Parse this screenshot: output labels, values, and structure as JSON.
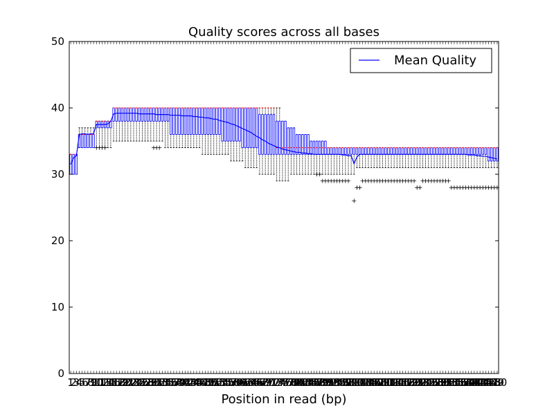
{
  "chart_data": {
    "type": "box",
    "title": "Quality scores across all bases",
    "xlabel": "Position in read (bp)",
    "ylabel": "",
    "ylim": [
      0,
      50
    ],
    "yticks": [
      0,
      10,
      20,
      30,
      40,
      50
    ],
    "grid": false,
    "legend": {
      "position": "top-right",
      "entries": [
        "Mean Quality"
      ]
    },
    "colors": {
      "mean": "#0000ff",
      "median": "#ff0000",
      "box": "#0000ff",
      "whisker": "#000000",
      "outlier": "#000000"
    },
    "positions": [
      1,
      2,
      3,
      4,
      5,
      6,
      7,
      8,
      9,
      10,
      11,
      12,
      13,
      14,
      15,
      16,
      17,
      18,
      19,
      20,
      21,
      22,
      23,
      24,
      25,
      26,
      27,
      28,
      29,
      30,
      31,
      32,
      33,
      34,
      35,
      36,
      37,
      38,
      39,
      40,
      41,
      42,
      43,
      44,
      45,
      46,
      47,
      48,
      49,
      50,
      51,
      52,
      53,
      54,
      55,
      56,
      57,
      58,
      59,
      60,
      61,
      62,
      63,
      64,
      65,
      66,
      67,
      68,
      69,
      70,
      71,
      72,
      73,
      74,
      75,
      76,
      77,
      78,
      79,
      80,
      81,
      82,
      83,
      84,
      85,
      86,
      87,
      88,
      89,
      90,
      91,
      92,
      93,
      94,
      95,
      96,
      97,
      98,
      99,
      100,
      101,
      102,
      103,
      104,
      105,
      106,
      107,
      108,
      109,
      110,
      111,
      112,
      113,
      114,
      115,
      116,
      117,
      118,
      119,
      120,
      121,
      122,
      123,
      124,
      125,
      126,
      127,
      128,
      129,
      130,
      131,
      132,
      133,
      134,
      135,
      136,
      137,
      138,
      139,
      140,
      141,
      142,
      143,
      144,
      145,
      146,
      147,
      148,
      149,
      150
    ],
    "mean_quality": [
      31.5,
      32.5,
      32.8,
      36.0,
      36.1,
      36.1,
      36.0,
      36.1,
      36.1,
      37.5,
      37.5,
      37.5,
      37.5,
      37.6,
      38.0,
      39.1,
      39.2,
      39.2,
      39.2,
      39.2,
      39.2,
      39.2,
      39.2,
      39.2,
      39.1,
      39.1,
      39.1,
      39.1,
      39.1,
      39.1,
      39.0,
      39.0,
      39.0,
      39.0,
      39.0,
      38.9,
      38.9,
      38.9,
      38.9,
      38.8,
      38.8,
      38.8,
      38.8,
      38.7,
      38.7,
      38.6,
      38.6,
      38.5,
      38.5,
      38.4,
      38.3,
      38.3,
      38.1,
      38.0,
      37.9,
      37.8,
      37.6,
      37.5,
      37.3,
      37.1,
      36.9,
      36.7,
      36.5,
      36.3,
      36.0,
      35.7,
      35.5,
      35.2,
      35.0,
      34.7,
      34.5,
      34.3,
      34.1,
      34.0,
      33.8,
      33.7,
      33.6,
      33.5,
      33.4,
      33.3,
      33.3,
      33.2,
      33.2,
      33.1,
      33.1,
      33.0,
      33.0,
      33.0,
      33.0,
      33.0,
      33.0,
      33.0,
      33.0,
      33.0,
      33.0,
      32.9,
      32.9,
      32.8,
      32.8,
      31.6,
      32.6,
      33.0,
      33.0,
      33.0,
      33.0,
      33.0,
      33.0,
      33.0,
      33.0,
      33.0,
      33.0,
      33.0,
      33.0,
      33.0,
      33.0,
      33.0,
      33.0,
      33.0,
      33.0,
      33.0,
      33.0,
      33.0,
      33.0,
      33.0,
      33.0,
      33.0,
      33.0,
      33.0,
      33.0,
      33.0,
      33.0,
      33.0,
      33.0,
      33.0,
      33.0,
      33.0,
      33.0,
      33.0,
      33.0,
      32.9,
      32.9,
      32.9,
      32.8,
      32.8,
      32.7,
      32.7,
      32.6,
      32.5,
      32.4,
      32.3,
      32.2,
      32.1,
      32.0,
      31.8
    ],
    "median": [
      33,
      33,
      33,
      36,
      36,
      36,
      36,
      36,
      36,
      38,
      38,
      38,
      38,
      38,
      38,
      40,
      40,
      40,
      40,
      40,
      40,
      40,
      40,
      40,
      40,
      40,
      40,
      40,
      40,
      40,
      40,
      40,
      40,
      40,
      40,
      40,
      40,
      40,
      40,
      40,
      40,
      40,
      40,
      40,
      40,
      40,
      40,
      40,
      40,
      40,
      40,
      40,
      40,
      40,
      40,
      40,
      40,
      40,
      40,
      40,
      40,
      40,
      40,
      40,
      40,
      40,
      40,
      40,
      40,
      40,
      40,
      40,
      34,
      34,
      34,
      34,
      34,
      34,
      34,
      34,
      34,
      34,
      34,
      34,
      34,
      34,
      34,
      34,
      34,
      34,
      34,
      34,
      34,
      34,
      34,
      34,
      34,
      34,
      34,
      34,
      34,
      34,
      34,
      34,
      34,
      34,
      34,
      34,
      34,
      34,
      34,
      34,
      34,
      34,
      34,
      34,
      34,
      34,
      34,
      34,
      34,
      34,
      34,
      34,
      34,
      34,
      34,
      34,
      34,
      34,
      34,
      34,
      34,
      34,
      34,
      34,
      34,
      34,
      34,
      34,
      34,
      34,
      34,
      34,
      34,
      34,
      34,
      34,
      34,
      34
    ],
    "q1": [
      30,
      30,
      30,
      34,
      34,
      34,
      34,
      34,
      34,
      37,
      37,
      37,
      37,
      37,
      37,
      38,
      38,
      38,
      38,
      38,
      38,
      38,
      38,
      38,
      38,
      38,
      38,
      38,
      38,
      38,
      38,
      38,
      38,
      38,
      38,
      36,
      36,
      36,
      36,
      36,
      36,
      36,
      36,
      36,
      36,
      36,
      36,
      36,
      36,
      36,
      36,
      36,
      36,
      35,
      35,
      35,
      35,
      35,
      35,
      35,
      34,
      34,
      34,
      34,
      34,
      34,
      33,
      33,
      33,
      33,
      33,
      33,
      33,
      33,
      33,
      33,
      33,
      33,
      33,
      33,
      33,
      33,
      33,
      33,
      33,
      33,
      33,
      33,
      33,
      33,
      33,
      33,
      33,
      33,
      33,
      33,
      33,
      33,
      33,
      33,
      33,
      33,
      33,
      33,
      33,
      33,
      33,
      33,
      33,
      33,
      33,
      33,
      33,
      33,
      33,
      33,
      33,
      33,
      33,
      33,
      33,
      33,
      33,
      33,
      33,
      33,
      33,
      33,
      33,
      33,
      33,
      33,
      33,
      33,
      33,
      33,
      33,
      33,
      33,
      33,
      33,
      33,
      33,
      33,
      33,
      33,
      32,
      32,
      32,
      32
    ],
    "q3": [
      33,
      33,
      33,
      36,
      36,
      36,
      36,
      36,
      36,
      38,
      38,
      38,
      38,
      38,
      38,
      40,
      40,
      40,
      40,
      40,
      40,
      40,
      40,
      40,
      40,
      40,
      40,
      40,
      40,
      40,
      40,
      40,
      40,
      40,
      40,
      40,
      40,
      40,
      40,
      40,
      40,
      40,
      40,
      40,
      40,
      40,
      40,
      40,
      40,
      40,
      40,
      40,
      40,
      40,
      40,
      40,
      40,
      40,
      40,
      40,
      40,
      40,
      40,
      40,
      40,
      40,
      39,
      39,
      39,
      39,
      39,
      39,
      38,
      38,
      38,
      38,
      37,
      37,
      37,
      36,
      36,
      36,
      36,
      36,
      35,
      35,
      35,
      35,
      35,
      35,
      34,
      34,
      34,
      34,
      34,
      34,
      34,
      34,
      34,
      34,
      34,
      34,
      34,
      34,
      34,
      34,
      34,
      34,
      34,
      34,
      34,
      34,
      34,
      34,
      34,
      34,
      34,
      34,
      34,
      34,
      34,
      34,
      34,
      34,
      34,
      34,
      34,
      34,
      34,
      34,
      34,
      34,
      34,
      34,
      34,
      34,
      34,
      34,
      34,
      34,
      34,
      34,
      34,
      34,
      34,
      34,
      34,
      34,
      34,
      34
    ],
    "whisker_low": [
      30,
      30,
      30,
      34,
      34,
      34,
      34,
      34,
      34,
      34,
      34,
      34,
      34,
      34,
      34,
      35,
      35,
      35,
      35,
      35,
      35,
      35,
      35,
      35,
      35,
      35,
      35,
      35,
      35,
      35,
      35,
      35,
      35,
      34,
      34,
      34,
      34,
      34,
      34,
      34,
      34,
      34,
      34,
      34,
      34,
      34,
      33,
      33,
      33,
      33,
      33,
      33,
      33,
      33,
      33,
      33,
      32,
      32,
      32,
      32,
      32,
      31,
      31,
      31,
      31,
      31,
      30,
      30,
      30,
      30,
      30,
      30,
      29,
      29,
      29,
      29,
      29,
      30,
      30,
      30,
      30,
      30,
      30,
      30,
      30,
      30,
      30,
      30,
      30,
      30,
      30,
      30,
      30,
      30,
      30,
      30,
      30,
      30,
      30,
      30,
      31,
      31,
      31,
      31,
      31,
      31,
      31,
      31,
      31,
      31,
      31,
      31,
      31,
      31,
      31,
      31,
      31,
      31,
      31,
      31,
      31,
      31,
      31,
      31,
      31,
      31,
      31,
      31,
      31,
      31,
      31,
      31,
      31,
      31,
      31,
      31,
      31,
      31,
      31,
      31,
      31,
      31,
      31,
      31,
      31,
      31,
      31,
      31,
      31,
      31
    ],
    "whisker_high": [
      33,
      33,
      33,
      37,
      37,
      37,
      37,
      37,
      37,
      38,
      38,
      38,
      38,
      38,
      38,
      40,
      40,
      40,
      40,
      40,
      40,
      40,
      40,
      40,
      40,
      40,
      40,
      40,
      40,
      40,
      40,
      40,
      40,
      40,
      40,
      40,
      40,
      40,
      40,
      40,
      40,
      40,
      40,
      40,
      40,
      40,
      40,
      40,
      40,
      40,
      40,
      40,
      40,
      40,
      40,
      40,
      40,
      40,
      40,
      40,
      40,
      40,
      40,
      40,
      40,
      40,
      40,
      40,
      40,
      40,
      40,
      40,
      40,
      40,
      38,
      38,
      37,
      37,
      37,
      36,
      36,
      36,
      36,
      36,
      35,
      35,
      35,
      35,
      35,
      35,
      34,
      34,
      34,
      34,
      34,
      34,
      34,
      34,
      34,
      34,
      34,
      34,
      34,
      34,
      34,
      34,
      34,
      34,
      34,
      34,
      34,
      34,
      34,
      34,
      34,
      34,
      34,
      34,
      34,
      34,
      34,
      34,
      34,
      34,
      34,
      34,
      34,
      34,
      34,
      34,
      34,
      34,
      34,
      34,
      34,
      34,
      34,
      34,
      34,
      34,
      34,
      34,
      34,
      34,
      34,
      34,
      34,
      34,
      34,
      34
    ],
    "outliers": [
      {
        "x": 10,
        "y": 34
      },
      {
        "x": 11,
        "y": 34
      },
      {
        "x": 12,
        "y": 34
      },
      {
        "x": 13,
        "y": 34
      },
      {
        "x": 30,
        "y": 34
      },
      {
        "x": 31,
        "y": 34
      },
      {
        "x": 32,
        "y": 34
      },
      {
        "x": 87,
        "y": 30
      },
      {
        "x": 88,
        "y": 30
      },
      {
        "x": 89,
        "y": 29
      },
      {
        "x": 90,
        "y": 29
      },
      {
        "x": 91,
        "y": 29
      },
      {
        "x": 92,
        "y": 29
      },
      {
        "x": 93,
        "y": 29
      },
      {
        "x": 94,
        "y": 29
      },
      {
        "x": 95,
        "y": 29
      },
      {
        "x": 96,
        "y": 29
      },
      {
        "x": 97,
        "y": 29
      },
      {
        "x": 98,
        "y": 29
      },
      {
        "x": 100,
        "y": 26
      },
      {
        "x": 101,
        "y": 28
      },
      {
        "x": 102,
        "y": 28
      },
      {
        "x": 103,
        "y": 29
      },
      {
        "x": 104,
        "y": 29
      },
      {
        "x": 105,
        "y": 29
      },
      {
        "x": 106,
        "y": 29
      },
      {
        "x": 107,
        "y": 29
      },
      {
        "x": 108,
        "y": 29
      },
      {
        "x": 109,
        "y": 29
      },
      {
        "x": 110,
        "y": 29
      },
      {
        "x": 111,
        "y": 29
      },
      {
        "x": 112,
        "y": 29
      },
      {
        "x": 113,
        "y": 29
      },
      {
        "x": 114,
        "y": 29
      },
      {
        "x": 115,
        "y": 29
      },
      {
        "x": 116,
        "y": 29
      },
      {
        "x": 117,
        "y": 29
      },
      {
        "x": 118,
        "y": 29
      },
      {
        "x": 119,
        "y": 29
      },
      {
        "x": 120,
        "y": 29
      },
      {
        "x": 121,
        "y": 29
      },
      {
        "x": 122,
        "y": 28
      },
      {
        "x": 123,
        "y": 28
      },
      {
        "x": 124,
        "y": 29
      },
      {
        "x": 125,
        "y": 29
      },
      {
        "x": 126,
        "y": 29
      },
      {
        "x": 127,
        "y": 29
      },
      {
        "x": 128,
        "y": 29
      },
      {
        "x": 129,
        "y": 29
      },
      {
        "x": 130,
        "y": 29
      },
      {
        "x": 131,
        "y": 29
      },
      {
        "x": 132,
        "y": 29
      },
      {
        "x": 133,
        "y": 29
      },
      {
        "x": 134,
        "y": 28
      },
      {
        "x": 135,
        "y": 28
      },
      {
        "x": 136,
        "y": 28
      },
      {
        "x": 137,
        "y": 28
      },
      {
        "x": 138,
        "y": 28
      },
      {
        "x": 139,
        "y": 28
      },
      {
        "x": 140,
        "y": 28
      },
      {
        "x": 141,
        "y": 28
      },
      {
        "x": 142,
        "y": 28
      },
      {
        "x": 143,
        "y": 28
      },
      {
        "x": 144,
        "y": 28
      },
      {
        "x": 145,
        "y": 28
      },
      {
        "x": 146,
        "y": 28
      },
      {
        "x": 147,
        "y": 28
      },
      {
        "x": 148,
        "y": 28
      },
      {
        "x": 149,
        "y": 28
      },
      {
        "x": 150,
        "y": 28
      }
    ],
    "series": [
      {
        "name": "Mean Quality"
      }
    ]
  }
}
